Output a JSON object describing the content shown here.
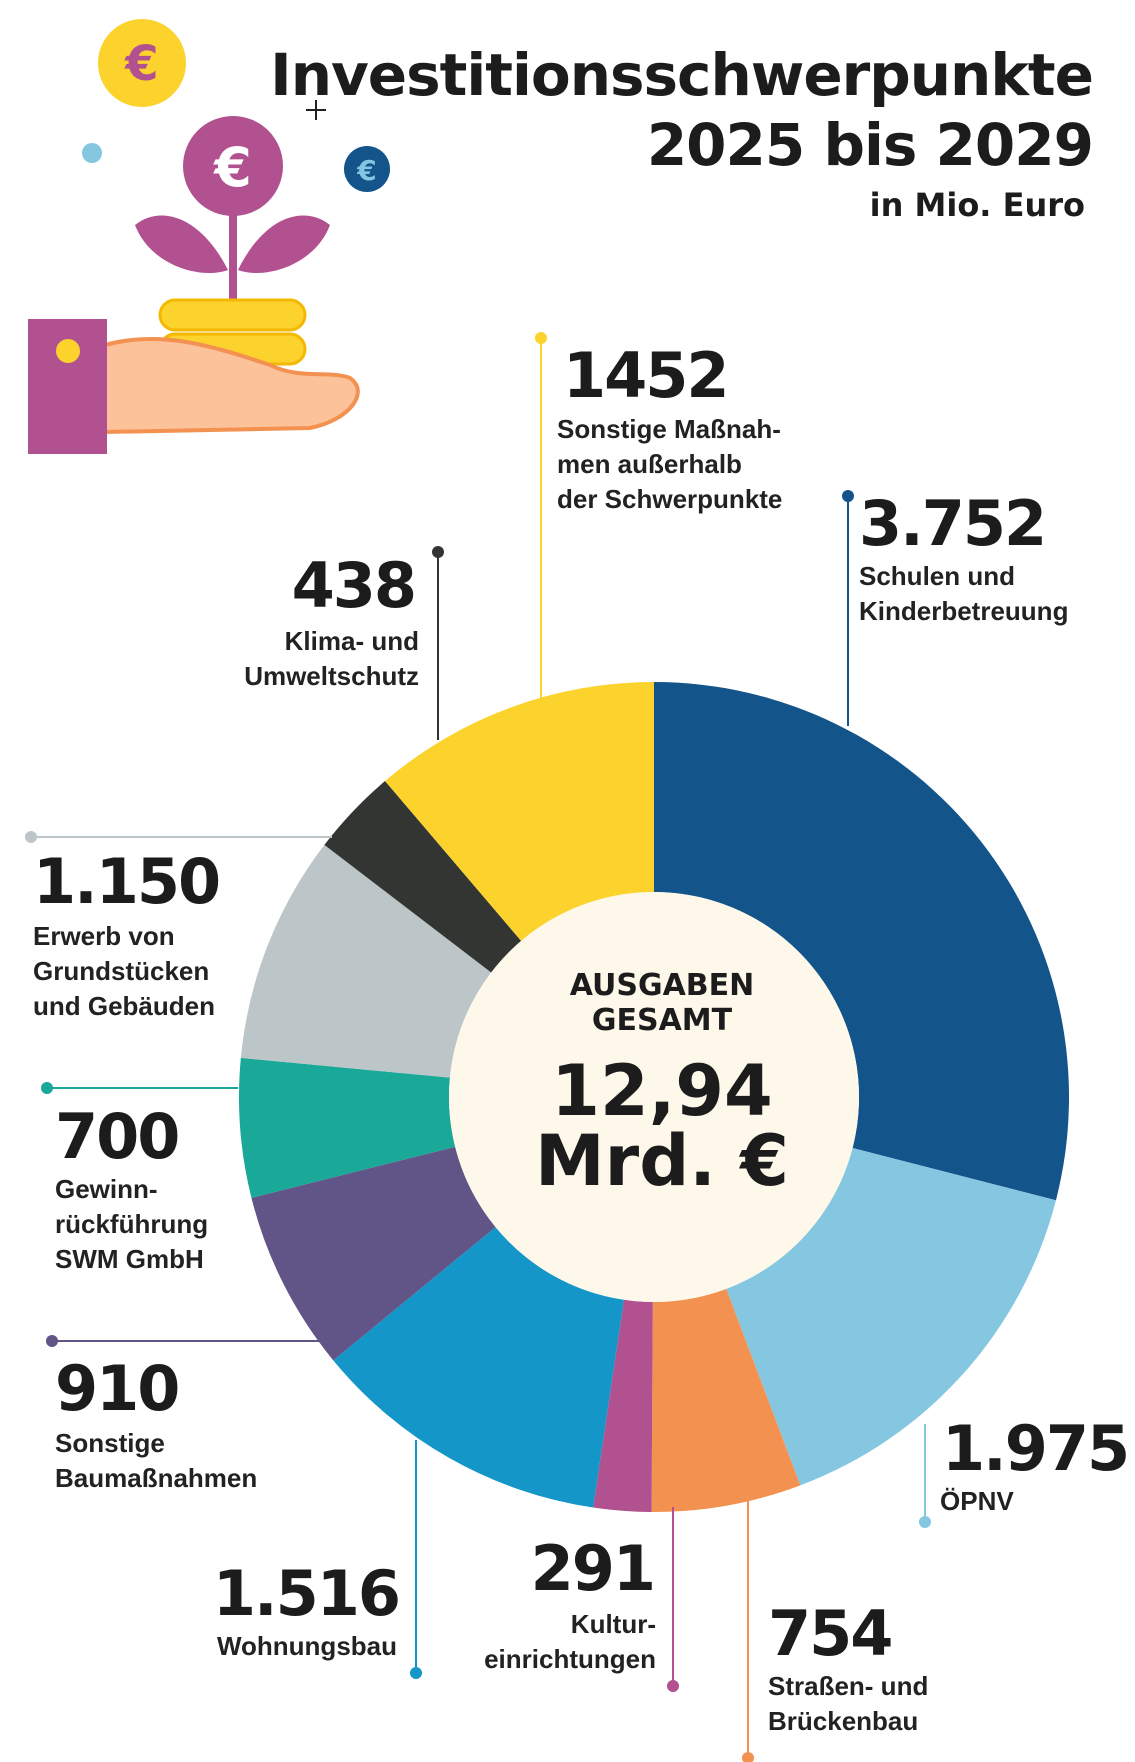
{
  "chart_data": {
    "type": "donut",
    "title_lines": [
      "Investitionsschwerpunkte",
      "2025 bis 2029"
    ],
    "subtitle": "in Mio. Euro",
    "center_lines": [
      "AUSGABEN",
      "GESAMT"
    ],
    "total_label": "12,94",
    "total_unit": "Mrd. €",
    "categories": [
      [
        "Schulen und",
        "Kinderbetreuung"
      ],
      [
        "ÖPNV"
      ],
      [
        "Straßen- und",
        "Brückenbau"
      ],
      [
        "Kultur-",
        "einrichtungen"
      ],
      [
        "Wohnungsbau"
      ],
      [
        "Sonstige",
        "Baumaßnahmen"
      ],
      [
        "Gewinn-",
        "rückführung",
        "SWM GmbH"
      ],
      [
        "Erwerb von",
        "Grundstücken",
        "und Gebäuden"
      ],
      [
        "Klima- und",
        "Umweltschutz"
      ],
      [
        "Sonstige Maßnah-",
        "men außerhalb",
        "der Schwerpunkte"
      ]
    ],
    "values": [
      3752,
      1975,
      754,
      291,
      1516,
      910,
      700,
      1150,
      438,
      1452
    ],
    "value_labels": [
      "3.752",
      "1.975",
      "754",
      "291",
      "1.516",
      "910",
      "700",
      "1.150",
      "438",
      "1452"
    ],
    "colors": [
      "#13548a",
      "#85c7e1",
      "#f39150",
      "#b2518f",
      "#1496c8",
      "#615587",
      "#1aa898",
      "#bcc5c7",
      "#333533",
      "#fcd22c"
    ]
  }
}
